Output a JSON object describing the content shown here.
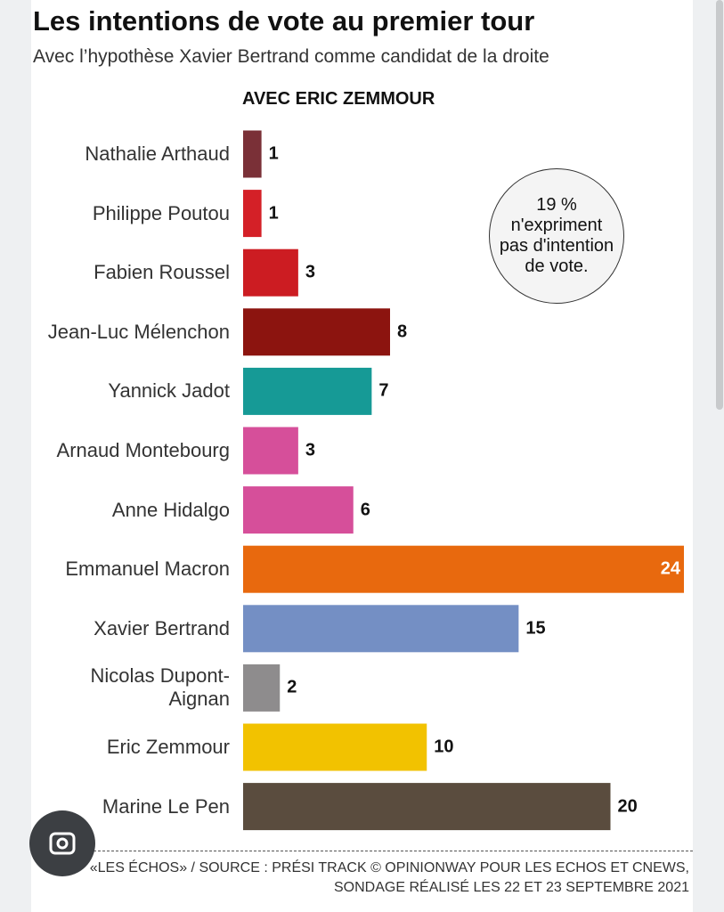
{
  "chart_data": {
    "type": "bar",
    "orientation": "horizontal",
    "title": "Les intentions de vote au premier tour",
    "subtitle": "Avec l’hypothèse Xavier Bertrand comme candidat de la droite",
    "panel_title": "AVEC ERIC ZEMMOUR",
    "categories": [
      "Nathalie Arthaud",
      "Philippe Poutou",
      "Fabien Roussel",
      "Jean-Luc Mélenchon",
      "Yannick Jadot",
      "Arnaud Montebourg",
      "Anne Hidalgo",
      "Emmanuel Macron",
      "Xavier Bertrand",
      "Nicolas Dupont-Aignan",
      "Eric Zemmour",
      "Marine Le Pen"
    ],
    "values": [
      1,
      1,
      3,
      8,
      7,
      3,
      6,
      24,
      15,
      2,
      10,
      20
    ],
    "colors": [
      "#7a3037",
      "#d42027",
      "#cc1c22",
      "#8c140f",
      "#169a96",
      "#d64f9a",
      "#d64f9a",
      "#e8690e",
      "#748fc4",
      "#8e8c8d",
      "#f2c200",
      "#5a4c3e"
    ],
    "annotation": "19 % n'expriment pas d'intention de vote.",
    "source": [
      "«LES ÉCHOS» / SOURCE : PRÉSI TRACK © OPINIONWAY POUR LES ECHOS ET CNEWS,",
      "SONDAGE RÉALISÉ LES 22 ET 23 SEPTEMBRE 2021"
    ]
  }
}
